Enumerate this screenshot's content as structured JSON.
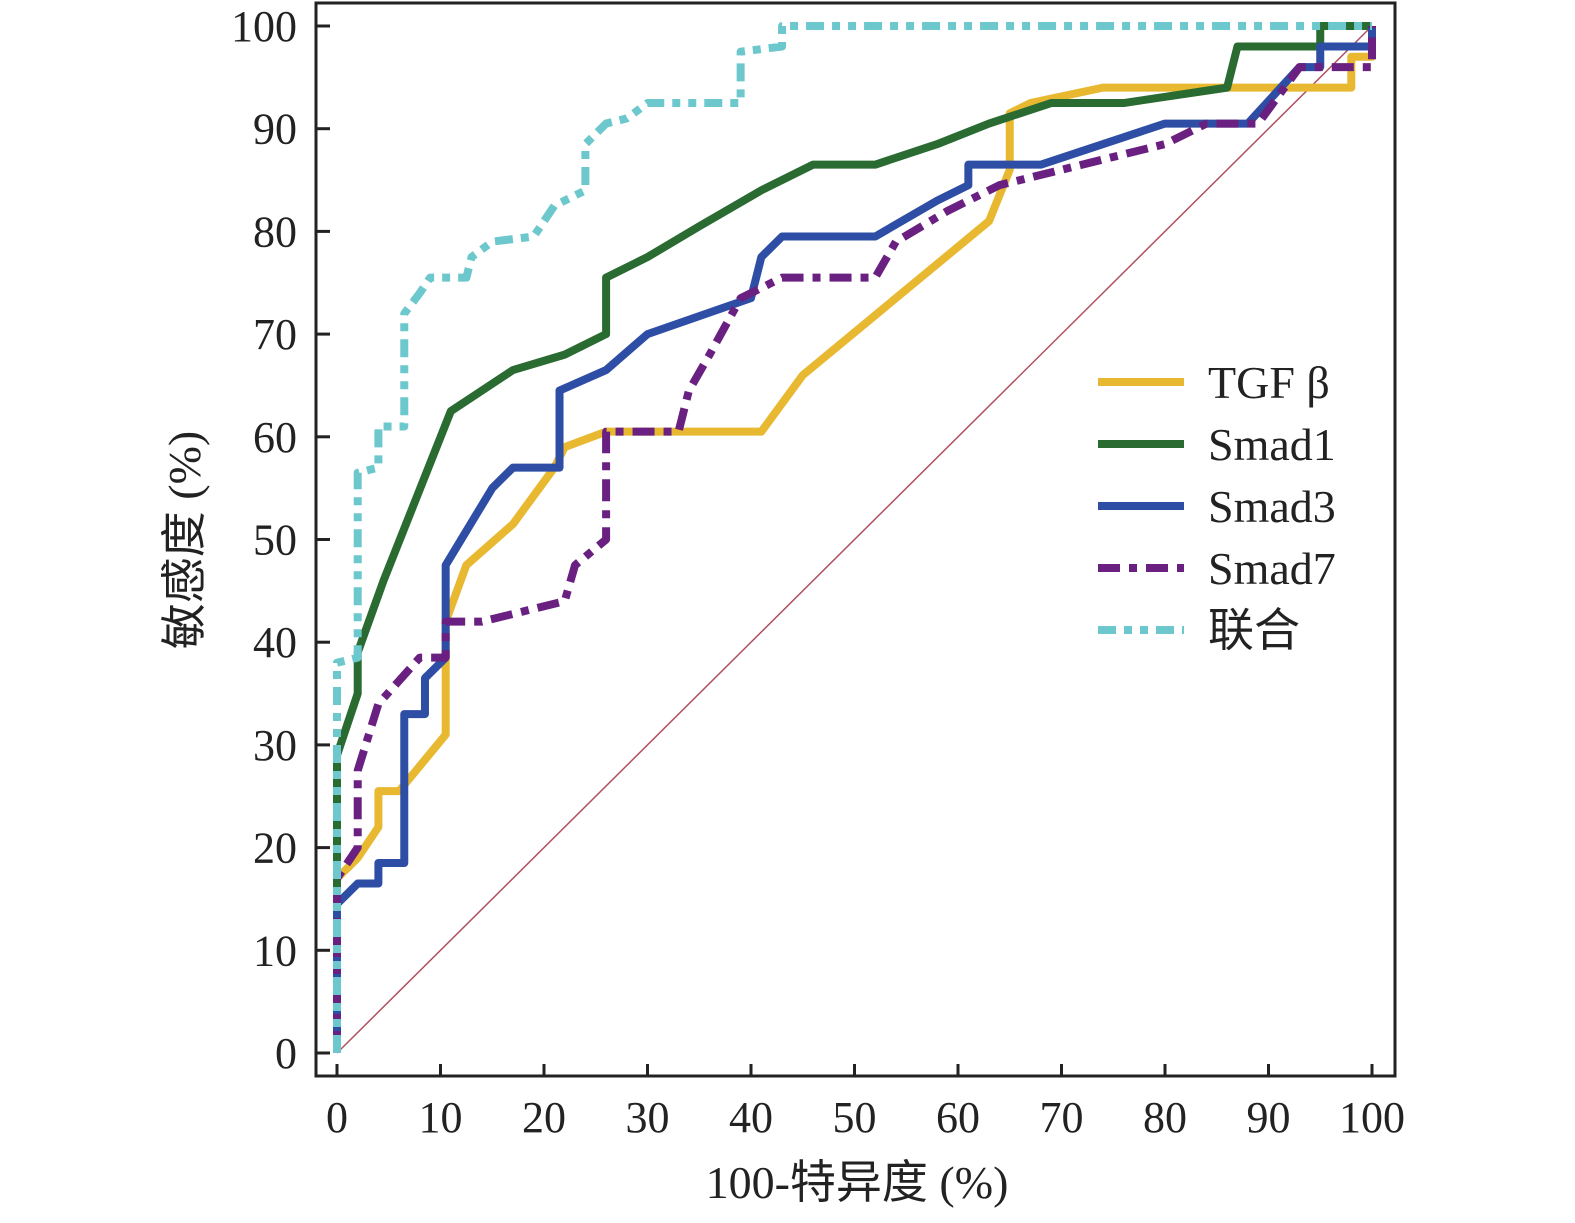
{
  "chart_data": {
    "type": "line",
    "title": "",
    "xlabel": "100-特异度 (%)",
    "ylabel": "敏感度 (%)",
    "xlim": [
      0,
      100
    ],
    "ylim": [
      0,
      100
    ],
    "xticks": [
      "0",
      "10",
      "20",
      "30",
      "40",
      "50",
      "60",
      "70",
      "80",
      "90",
      "100"
    ],
    "yticks": [
      "0",
      "10",
      "20",
      "30",
      "40",
      "50",
      "60",
      "70",
      "80",
      "90",
      "100"
    ],
    "grid": false,
    "legend_position": "center-right",
    "reference_line": {
      "x": [
        0,
        100
      ],
      "y": [
        0,
        100
      ],
      "color": "#B05060"
    },
    "series": [
      {
        "name": "TGF β",
        "color": "#E8B830",
        "style": "solid",
        "x": [
          0,
          0,
          2,
          4,
          4,
          6,
          10.5,
          10.5,
          12.5,
          17,
          21,
          22,
          26,
          41,
          45,
          63,
          65,
          65,
          67,
          74,
          85,
          98,
          98,
          100,
          100
        ],
        "y": [
          0,
          17,
          19,
          22,
          25.5,
          25.5,
          31,
          42,
          47.5,
          51.5,
          57,
          59,
          60.5,
          60.5,
          66,
          81,
          86,
          91.5,
          92.5,
          94,
          94,
          94,
          97,
          97,
          100
        ]
      },
      {
        "name": "Smad1",
        "color": "#2A6B32",
        "style": "solid",
        "x": [
          0,
          0,
          2,
          2,
          4.5,
          11,
          17,
          22,
          26,
          26,
          30,
          35,
          41,
          46,
          52,
          58,
          63,
          69,
          76,
          86,
          87,
          95,
          95,
          100
        ],
        "y": [
          0,
          29,
          35,
          39,
          46,
          62.5,
          66.5,
          68,
          70,
          75.5,
          77.5,
          80.5,
          84,
          86.5,
          86.5,
          88.5,
          90.5,
          92.5,
          92.5,
          94,
          98,
          98,
          100,
          100
        ]
      },
      {
        "name": "Smad3",
        "color": "#2E4EA6",
        "style": "solid",
        "x": [
          0,
          0,
          2,
          4,
          4,
          6.5,
          6.5,
          8.5,
          8.5,
          10.5,
          10.5,
          15,
          17,
          21.5,
          21.5,
          26,
          30,
          40,
          41,
          43,
          52,
          58,
          61,
          61,
          68,
          80,
          88,
          93,
          95,
          95,
          100,
          100
        ],
        "y": [
          0,
          14.5,
          16.5,
          16.5,
          18.5,
          18.5,
          33,
          33,
          36.5,
          38.5,
          47.5,
          55,
          57,
          57,
          64.5,
          66.5,
          70,
          73.5,
          77.5,
          79.5,
          79.5,
          83,
          84.5,
          86.5,
          86.5,
          90.5,
          90.5,
          96,
          96,
          98,
          98,
          100
        ]
      },
      {
        "name": "Smad7",
        "color": "#6A2080",
        "style": "dash-dot",
        "x": [
          0,
          0,
          2,
          2,
          4,
          8,
          10.5,
          10.5,
          14,
          22,
          23,
          26,
          26,
          33,
          34,
          36,
          39,
          43,
          52,
          54,
          59,
          64,
          70,
          80,
          84,
          89,
          93,
          97,
          100,
          100
        ],
        "y": [
          0,
          17,
          20,
          27.5,
          34,
          38.5,
          38.5,
          42,
          42,
          44,
          47.5,
          50,
          60.5,
          60.5,
          64.5,
          68,
          73.5,
          75.5,
          75.5,
          79,
          82,
          84.5,
          86,
          88.5,
          90.5,
          90.5,
          96,
          96,
          96,
          100
        ]
      },
      {
        "name": "联合",
        "color": "#6CC8CC",
        "style": "dash-dot-dot",
        "x": [
          0,
          0,
          0,
          2,
          2,
          4,
          4,
          6.5,
          6.5,
          8,
          9,
          12.5,
          13,
          15,
          19,
          20,
          21,
          24,
          24,
          26,
          28,
          30,
          39,
          39,
          43,
          43,
          100
        ],
        "y": [
          0,
          30,
          38,
          38.5,
          56.5,
          57,
          61,
          61,
          72,
          74,
          75.5,
          75.5,
          77.5,
          79,
          79.5,
          81,
          82.5,
          84,
          88.5,
          90.5,
          91,
          92.5,
          92.5,
          97.5,
          98,
          100,
          100
        ]
      }
    ]
  }
}
